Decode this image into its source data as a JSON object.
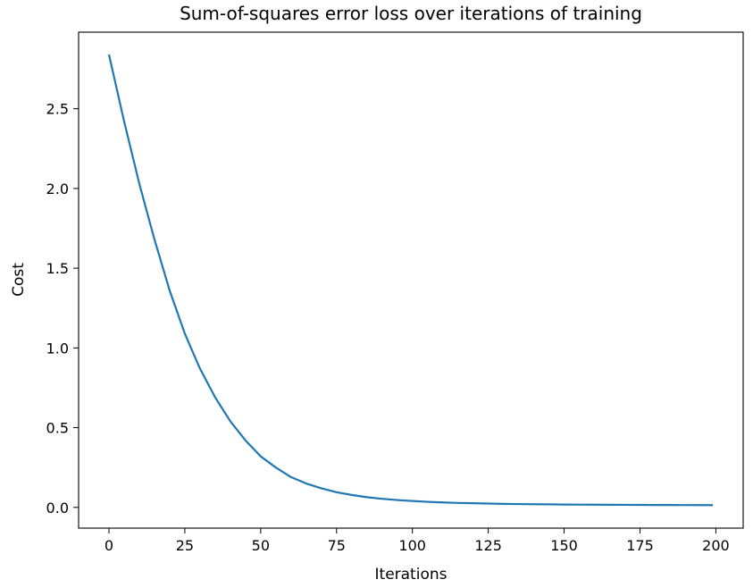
{
  "chart_data": {
    "type": "line",
    "title": "Sum-of-squares error loss over iterations of training",
    "xlabel": "Iterations",
    "ylabel": "Cost",
    "xlim": [
      -10,
      209
    ],
    "ylim": [
      -0.13,
      2.98
    ],
    "xticks": [
      0,
      25,
      50,
      75,
      100,
      125,
      150,
      175,
      200
    ],
    "xtick_labels": [
      "0",
      "25",
      "50",
      "75",
      "100",
      "125",
      "150",
      "175",
      "200"
    ],
    "yticks": [
      0.0,
      0.5,
      1.0,
      1.5,
      2.0,
      2.5
    ],
    "ytick_labels": [
      "0.0",
      "0.5",
      "1.0",
      "1.5",
      "2.0",
      "2.5"
    ],
    "grid": false,
    "colors": {
      "line": "#1f77b4",
      "axes": "#000000",
      "background": "#ffffff"
    },
    "series": [
      {
        "x": [
          0,
          5,
          10,
          15,
          20,
          25,
          30,
          35,
          40,
          45,
          50,
          55,
          60,
          65,
          70,
          75,
          80,
          85,
          90,
          95,
          100,
          105,
          110,
          115,
          120,
          125,
          130,
          135,
          140,
          145,
          150,
          155,
          160,
          165,
          170,
          175,
          180,
          185,
          190,
          195,
          199
        ],
        "y": [
          2.84,
          2.42,
          2.03,
          1.68,
          1.36,
          1.09,
          0.87,
          0.69,
          0.54,
          0.42,
          0.32,
          0.25,
          0.19,
          0.15,
          0.12,
          0.095,
          0.078,
          0.064,
          0.054,
          0.046,
          0.04,
          0.035,
          0.031,
          0.028,
          0.026,
          0.024,
          0.022,
          0.021,
          0.02,
          0.019,
          0.018,
          0.0175,
          0.017,
          0.0165,
          0.016,
          0.0155,
          0.015,
          0.0148,
          0.0146,
          0.0144,
          0.0142
        ]
      }
    ]
  }
}
